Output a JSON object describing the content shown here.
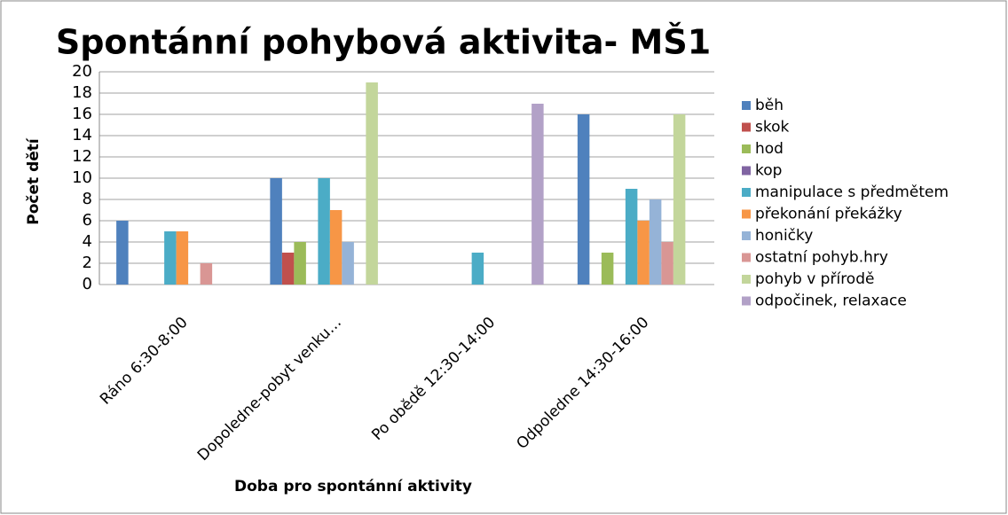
{
  "chart_data": {
    "type": "bar",
    "title": "Spontánní pohybová aktivita- MŠ1",
    "x_label": "Doba pro spontánní aktivity",
    "y_label": "Počet dětí",
    "categories": [
      "Ráno 6:30-8:00",
      "Dopoledne-pobyt venku…",
      "Po obědě 12:30-14:00",
      "Odpoledne 14:30-16:00"
    ],
    "series": [
      {
        "name": "běh",
        "color": "#4f81bd",
        "values": [
          6,
          10,
          0,
          16
        ]
      },
      {
        "name": "skok",
        "color": "#c0504d",
        "values": [
          0,
          3,
          0,
          0
        ]
      },
      {
        "name": "hod",
        "color": "#9bbb59",
        "values": [
          0,
          4,
          0,
          3
        ]
      },
      {
        "name": "kop",
        "color": "#8064a2",
        "values": [
          0,
          0,
          0,
          0
        ]
      },
      {
        "name": "manipulace s předmětem",
        "color": "#4bacc6",
        "values": [
          5,
          10,
          3,
          9
        ]
      },
      {
        "name": "překonání překážky",
        "color": "#f79646",
        "values": [
          5,
          7,
          0,
          6
        ]
      },
      {
        "name": "honičky",
        "color": "#95b3d7",
        "values": [
          0,
          4,
          0,
          8
        ]
      },
      {
        "name": "ostatní pohyb.hry",
        "color": "#d99694",
        "values": [
          2,
          0,
          0,
          4
        ]
      },
      {
        "name": "pohyb v přírodě",
        "color": "#c3d69b",
        "values": [
          0,
          19,
          0,
          16
        ]
      },
      {
        "name": "odpočinek, relaxace",
        "color": "#b2a1c7",
        "values": [
          0,
          0,
          17,
          0
        ]
      }
    ],
    "ylim": [
      0,
      20
    ],
    "yticks": [
      0,
      2,
      4,
      6,
      8,
      10,
      12,
      14,
      16,
      18,
      20
    ],
    "grid": true,
    "legend": "right"
  }
}
